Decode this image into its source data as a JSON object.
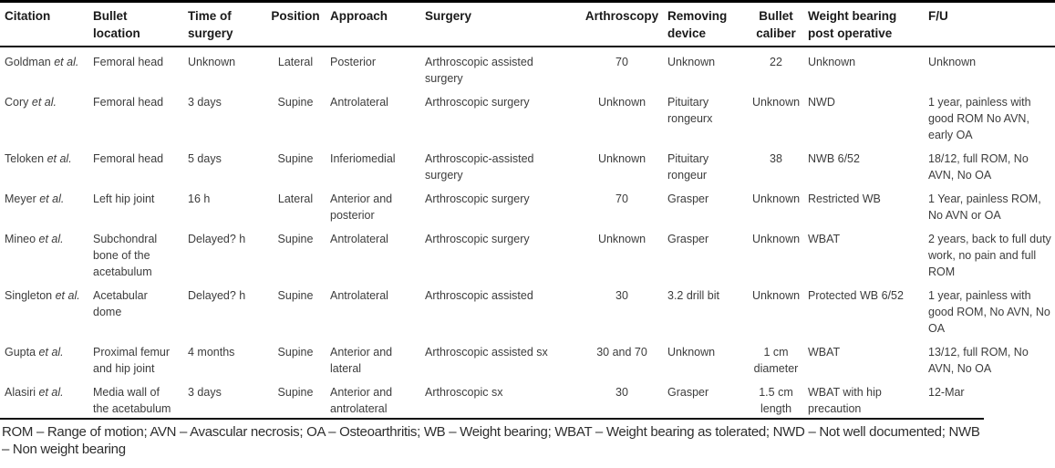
{
  "table": {
    "columns": [
      {
        "label": "Citation"
      },
      {
        "label": "Bullet location"
      },
      {
        "label": "Time of surgery"
      },
      {
        "label": "Position"
      },
      {
        "label": "Approach"
      },
      {
        "label": "Surgery"
      },
      {
        "label": "Arthroscopy"
      },
      {
        "label": "Removing device"
      },
      {
        "label": "Bullet caliber"
      },
      {
        "label": "Weight bearing post operative"
      },
      {
        "label": "F/U"
      }
    ],
    "rows": [
      {
        "citation": "Goldman",
        "etal": "et al.",
        "cells": [
          "Femoral head",
          "Unknown",
          "Lateral",
          "Posterior",
          "Arthroscopic assisted surgery",
          "70",
          "Unknown",
          "22",
          "Unknown",
          "Unknown"
        ]
      },
      {
        "citation": "Cory",
        "etal": "et al.",
        "cells": [
          "Femoral head",
          "3 days",
          "Supine",
          "Antrolateral",
          "Arthroscopic surgery",
          "Unknown",
          "Pituitary rongeurx",
          "Unknown",
          "NWD",
          "1 year, painless with good ROM No AVN, early OA"
        ]
      },
      {
        "citation": "Teloken",
        "etal": "et al.",
        "cells": [
          "Femoral head",
          "5 days",
          "Supine",
          "Inferiomedial",
          "Arthroscopic-assisted surgery",
          "Unknown",
          "Pituitary rongeur",
          "38",
          "NWB 6/52",
          "18/12, full ROM, No AVN, No OA"
        ]
      },
      {
        "citation": "Meyer",
        "etal": "et al.",
        "cells": [
          "Left hip joint",
          "16 h",
          "Lateral",
          "Anterior and posterior",
          "Arthroscopic surgery",
          "70",
          "Grasper",
          "Unknown",
          "Restricted WB",
          "1 Year, painless ROM, No AVN or OA"
        ]
      },
      {
        "citation": "Mineo",
        "etal": "et al.",
        "cells": [
          "Subchondral bone of the acetabulum",
          "Delayed? h",
          "Supine",
          "Antrolateral",
          "Arthroscopic surgery",
          "Unknown",
          "Grasper",
          "Unknown",
          "WBAT",
          "2 years, back to full duty work, no pain and full ROM"
        ]
      },
      {
        "citation": "Singleton",
        "etal": "et al.",
        "cells": [
          "Acetabular dome",
          "Delayed? h",
          "Supine",
          "Antrolateral",
          "Arthroscopic assisted",
          "30",
          "3.2 drill bit",
          "Unknown",
          "Protected WB 6/52",
          "1 year, painless with good ROM, No AVN, No OA"
        ]
      },
      {
        "citation": "Gupta",
        "etal": "et al.",
        "cells": [
          "Proximal femur and hip joint",
          "4 months",
          "Supine",
          "Anterior and lateral",
          "Arthroscopic assisted sx",
          "30 and 70",
          "Unknown",
          "1 cm diameter",
          "WBAT",
          "13/12, full ROM, No AVN, No OA"
        ]
      },
      {
        "citation": "Alasiri",
        "etal": "et al.",
        "cells": [
          "Media wall of the acetabulum",
          "3 days",
          "Supine",
          "Anterior and antrolateral",
          "Arthroscopic sx",
          "30",
          "Grasper",
          "1.5 cm length",
          "WBAT with hip precaution",
          "12-Mar"
        ]
      }
    ]
  },
  "footnote": "ROM – Range of motion; AVN – Avascular necrosis; OA – Osteoarthritis; WB – Weight bearing; WBAT – Weight bearing as tolerated; NWD – Not well documented; NWB – Non weight bearing"
}
